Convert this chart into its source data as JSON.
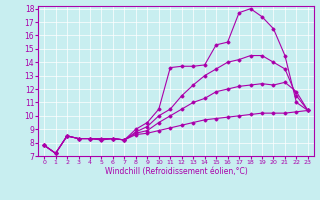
{
  "xlabel": "Windchill (Refroidissement éolien,°C)",
  "bg_color": "#c8eef0",
  "line_color": "#aa00aa",
  "xlim": [
    -0.5,
    23.5
  ],
  "ylim": [
    7,
    18.2
  ],
  "xticks": [
    0,
    1,
    2,
    3,
    4,
    5,
    6,
    7,
    8,
    9,
    10,
    11,
    12,
    13,
    14,
    15,
    16,
    17,
    18,
    19,
    20,
    21,
    22,
    23
  ],
  "yticks": [
    7,
    8,
    9,
    10,
    11,
    12,
    13,
    14,
    15,
    16,
    17,
    18
  ],
  "series": [
    {
      "x": [
        0,
        1,
        2,
        3,
        4,
        5,
        6,
        7,
        8,
        9,
        10,
        11,
        12,
        13,
        14,
        15,
        16,
        17,
        18,
        19,
        20,
        21,
        22,
        23
      ],
      "y": [
        7.8,
        7.2,
        8.5,
        8.3,
        8.3,
        8.3,
        8.3,
        8.2,
        9.0,
        9.5,
        10.5,
        13.6,
        13.7,
        13.7,
        13.8,
        15.3,
        15.5,
        17.7,
        18.0,
        17.4,
        16.5,
        14.5,
        11.0,
        10.4
      ]
    },
    {
      "x": [
        0,
        1,
        2,
        3,
        4,
        5,
        6,
        7,
        8,
        9,
        10,
        11,
        12,
        13,
        14,
        15,
        16,
        17,
        18,
        19,
        20,
        21,
        22,
        23
      ],
      "y": [
        7.8,
        7.2,
        8.5,
        8.3,
        8.3,
        8.3,
        8.3,
        8.2,
        8.8,
        9.2,
        10.0,
        10.5,
        11.5,
        12.3,
        13.0,
        13.5,
        14.0,
        14.2,
        14.5,
        14.5,
        14.0,
        13.5,
        11.5,
        10.4
      ]
    },
    {
      "x": [
        0,
        1,
        2,
        3,
        4,
        5,
        6,
        7,
        8,
        9,
        10,
        11,
        12,
        13,
        14,
        15,
        16,
        17,
        18,
        19,
        20,
        21,
        22,
        23
      ],
      "y": [
        7.8,
        7.2,
        8.5,
        8.3,
        8.3,
        8.2,
        8.3,
        8.2,
        8.7,
        8.9,
        9.5,
        10.0,
        10.5,
        11.0,
        11.3,
        11.8,
        12.0,
        12.2,
        12.3,
        12.4,
        12.3,
        12.5,
        11.8,
        10.4
      ]
    },
    {
      "x": [
        0,
        1,
        2,
        3,
        4,
        5,
        6,
        7,
        8,
        9,
        10,
        11,
        12,
        13,
        14,
        15,
        16,
        17,
        18,
        19,
        20,
        21,
        22,
        23
      ],
      "y": [
        7.8,
        7.2,
        8.5,
        8.3,
        8.3,
        8.2,
        8.3,
        8.2,
        8.6,
        8.7,
        8.9,
        9.1,
        9.3,
        9.5,
        9.7,
        9.8,
        9.9,
        10.0,
        10.1,
        10.2,
        10.2,
        10.2,
        10.3,
        10.4
      ]
    }
  ]
}
